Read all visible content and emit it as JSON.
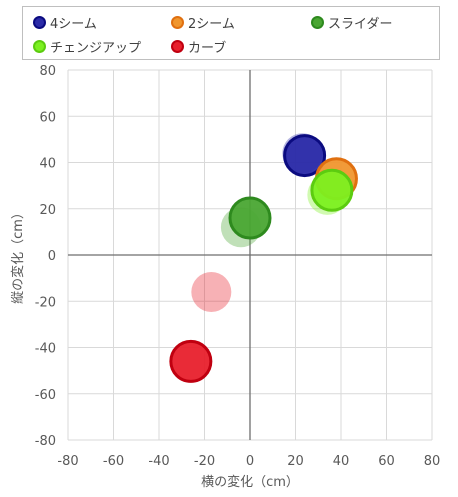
{
  "chart_data": {
    "type": "scatter",
    "title": "",
    "xlabel": "横の変化（cm）",
    "ylabel": "縦の変化（cm）",
    "xlim": [
      -80,
      80
    ],
    "ylim": [
      -80,
      80
    ],
    "x_ticks": [
      "-80",
      "-60",
      "-40",
      "-20",
      "0",
      "20",
      "40",
      "60",
      "80"
    ],
    "y_ticks": [
      "80",
      "60",
      "40",
      "20",
      "0",
      "-20",
      "-40",
      "-60",
      "-80"
    ],
    "grid": true,
    "legend_position": "top",
    "series": [
      {
        "name": "4シーム",
        "color": "#2b2ba8",
        "edge": "#0b0b80",
        "points": [
          {
            "x": 23,
            "y": 44,
            "style": "faded"
          },
          {
            "x": 24,
            "y": 43,
            "style": "solid"
          }
        ]
      },
      {
        "name": "2シーム",
        "color": "#f0962e",
        "edge": "#e07010",
        "points": [
          {
            "x": 38,
            "y": 33,
            "style": "solid"
          }
        ]
      },
      {
        "name": "スライダー",
        "color": "#4aa633",
        "edge": "#2e8a1e",
        "points": [
          {
            "x": -4,
            "y": 12,
            "style": "faded"
          },
          {
            "x": 0,
            "y": 16,
            "style": "solid"
          }
        ]
      },
      {
        "name": "チェンジアップ",
        "color": "#7cf020",
        "edge": "#5ccc10",
        "points": [
          {
            "x": 34,
            "y": 26,
            "style": "faded"
          },
          {
            "x": 36,
            "y": 28,
            "style": "solid"
          }
        ]
      },
      {
        "name": "カーブ",
        "color": "#e8202c",
        "edge": "#c00010",
        "points": [
          {
            "x": -17,
            "y": -16,
            "style": "faded"
          },
          {
            "x": -26,
            "y": -46,
            "style": "solid"
          }
        ]
      }
    ]
  }
}
